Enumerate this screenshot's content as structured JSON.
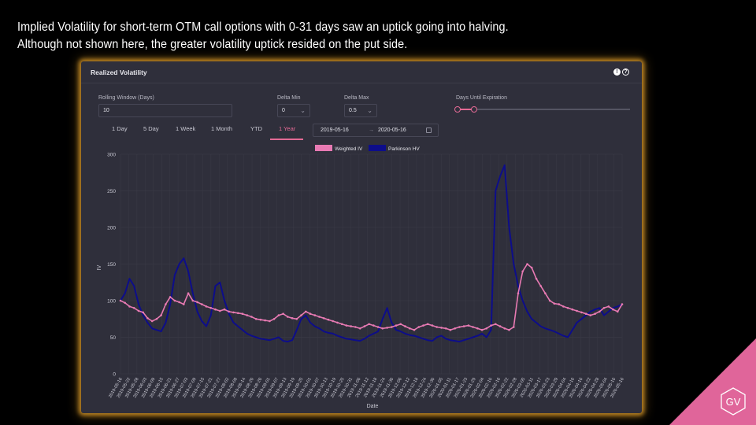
{
  "headline": {
    "line1": "Implied Volatility for short-term OTM call options with 0-31 days saw an uptick going into halving.",
    "line2": "Although not shown here, the greater volatility uptick resided on the put side."
  },
  "panel": {
    "title": "Realized Volatility",
    "info_icon": "info-icon",
    "help_icon": "help-icon"
  },
  "controls": {
    "rolling_window": {
      "label": "Rolling Window (Days)",
      "value": "10"
    },
    "delta_min": {
      "label": "Delta Min",
      "value": "0"
    },
    "delta_max": {
      "label": "Delta Max",
      "value": "0.5"
    },
    "days_until_expiration": {
      "label": "Days Until Expiration",
      "range": [
        0,
        31
      ]
    }
  },
  "tabs": [
    {
      "label": "1 Day"
    },
    {
      "label": "5 Day"
    },
    {
      "label": "1 Week"
    },
    {
      "label": "1 Month"
    },
    {
      "label": "YTD"
    },
    {
      "label": "1 Year",
      "active": true
    }
  ],
  "date_range": {
    "start": "2019-05-16",
    "arrow": "→",
    "end": "2020-05-16"
  },
  "colors": {
    "weighted_iv": "#e87ab3",
    "parkinson_hv": "#0d0d8a",
    "accent": "#e36a95",
    "glow": "#d69628"
  },
  "brand": {
    "logo_text": "GV",
    "corner_color": "#e0659a"
  },
  "chart_data": {
    "type": "line",
    "title": "",
    "xlabel": "Date",
    "ylabel": "IV",
    "ylim": [
      0,
      300
    ],
    "yticks": [
      0,
      50,
      100,
      150,
      200,
      250,
      300
    ],
    "grid": true,
    "legend_position": "top-center",
    "xticks": [
      "2019-05-16",
      "2019-05-22",
      "2019-05-28",
      "2019-06-03",
      "2019-06-09",
      "2019-06-15",
      "2019-06-21",
      "2019-06-27",
      "2019-07-03",
      "2019-07-09",
      "2019-07-15",
      "2019-07-21",
      "2019-07-27",
      "2019-08-02",
      "2019-08-08",
      "2019-08-14",
      "2019-08-20",
      "2019-08-26",
      "2019-09-01",
      "2019-09-07",
      "2019-09-13",
      "2019-09-19",
      "2019-09-25",
      "2019-10-01",
      "2019-10-07",
      "2019-10-13",
      "2019-10-19",
      "2019-10-25",
      "2019-10-31",
      "2019-11-06",
      "2019-11-12",
      "2019-11-18",
      "2019-11-24",
      "2019-11-30",
      "2019-12-06",
      "2019-12-12",
      "2019-12-18",
      "2019-12-24",
      "2019-12-30",
      "2020-01-05",
      "2020-01-11",
      "2020-01-17",
      "2020-01-23",
      "2020-01-29",
      "2020-02-04",
      "2020-02-10",
      "2020-02-16",
      "2020-02-22",
      "2020-02-28",
      "2020-03-05",
      "2020-03-11",
      "2020-03-17",
      "2020-03-23",
      "2020-03-29",
      "2020-04-04",
      "2020-04-10",
      "2020-04-16",
      "2020-04-22",
      "2020-04-28",
      "2020-05-04",
      "2020-05-10",
      "2020-05-16"
    ],
    "series": [
      {
        "name": "Weighted IV",
        "values": [
          100,
          97,
          92,
          90,
          86,
          84,
          76,
          72,
          75,
          80,
          95,
          105,
          100,
          98,
          95,
          110,
          100,
          98,
          95,
          92,
          90,
          88,
          86,
          88,
          85,
          84,
          83,
          82,
          80,
          78,
          75,
          74,
          73,
          72,
          75,
          80,
          82,
          78,
          76,
          75,
          80,
          85,
          82,
          80,
          78,
          76,
          74,
          72,
          70,
          68,
          66,
          65,
          64,
          62,
          65,
          68,
          66,
          64,
          62,
          63,
          64,
          66,
          68,
          65,
          62,
          60,
          64,
          66,
          68,
          66,
          64,
          63,
          62,
          60,
          62,
          64,
          65,
          66,
          64,
          62,
          60,
          62,
          66,
          68,
          65,
          62,
          60,
          64,
          110,
          140,
          150,
          145,
          130,
          120,
          110,
          100,
          96,
          95,
          92,
          90,
          88,
          86,
          84,
          82,
          80,
          82,
          85,
          90,
          92,
          88,
          85,
          95
        ]
      },
      {
        "name": "Parkinson HV",
        "values": [
          100,
          110,
          130,
          120,
          95,
          80,
          70,
          62,
          60,
          58,
          70,
          95,
          135,
          150,
          158,
          140,
          110,
          85,
          72,
          65,
          80,
          120,
          125,
          100,
          82,
          70,
          65,
          60,
          55,
          52,
          50,
          48,
          47,
          46,
          48,
          50,
          45,
          44,
          46,
          60,
          75,
          80,
          70,
          65,
          62,
          58,
          56,
          55,
          52,
          50,
          48,
          47,
          46,
          45,
          48,
          52,
          55,
          58,
          75,
          90,
          70,
          60,
          58,
          55,
          53,
          52,
          50,
          48,
          46,
          45,
          50,
          52,
          48,
          46,
          45,
          44,
          46,
          48,
          50,
          52,
          55,
          50,
          60,
          250,
          270,
          285,
          200,
          150,
          120,
          100,
          85,
          75,
          70,
          65,
          62,
          60,
          58,
          55,
          52,
          50,
          60,
          70,
          75,
          80,
          85,
          88,
          90,
          80,
          85,
          90,
          92,
          95
        ]
      }
    ]
  }
}
